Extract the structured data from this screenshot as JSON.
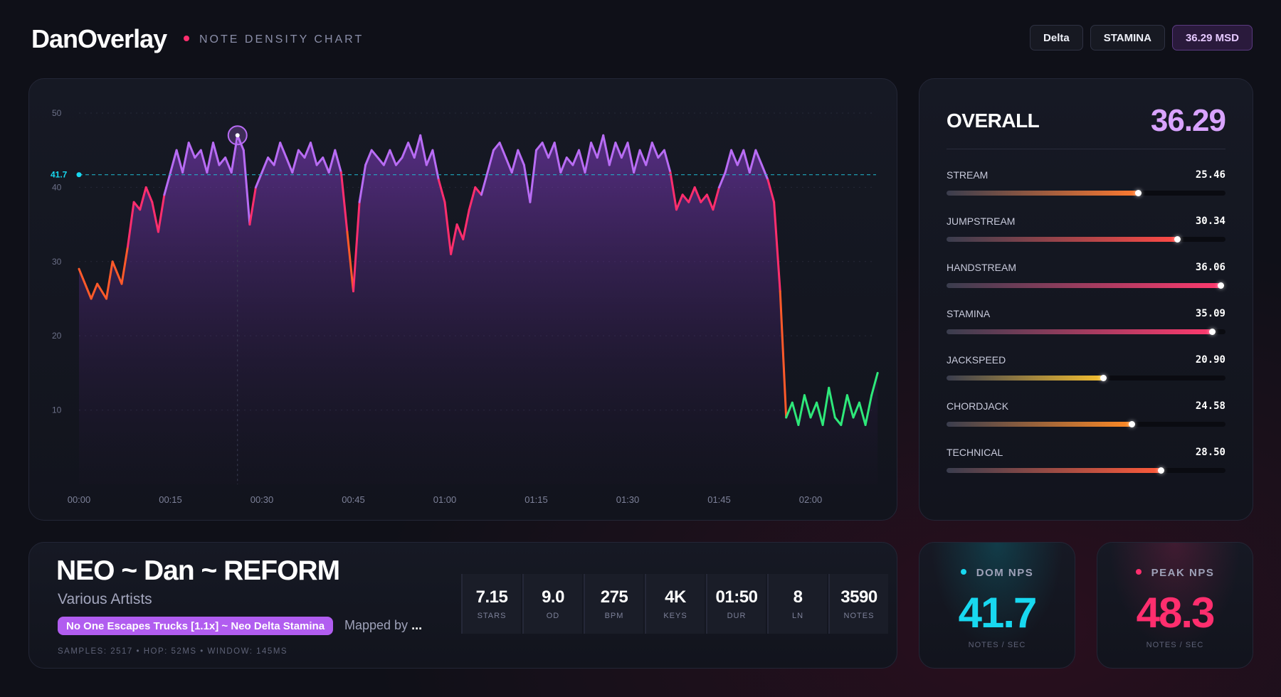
{
  "header": {
    "brand": "DanOverlay",
    "subtitle": "NOTE DENSITY CHART",
    "chips": [
      {
        "label": "Delta"
      },
      {
        "label": "STAMINA"
      },
      {
        "label": "36.29 MSD"
      }
    ]
  },
  "chart_data": {
    "type": "area",
    "title": "",
    "xlabel": "",
    "ylabel": "",
    "x_ticks": [
      "00:00",
      "00:15",
      "00:30",
      "00:45",
      "01:00",
      "01:15",
      "01:30",
      "01:45",
      "02:00"
    ],
    "y_ticks": [
      10,
      20,
      30,
      40,
      50
    ],
    "ylim": [
      0,
      50
    ],
    "xlim_seconds": [
      0,
      131
    ],
    "dominant_line": {
      "value": 41.7,
      "label": "41.7"
    },
    "marker": {
      "x_seconds": 26,
      "y": 47
    },
    "grid": true,
    "color_scale": {
      "low": "#ff5a2a",
      "mid": "#ff2e6e",
      "high": "#b86cf4",
      "floor": "#2ee87a"
    },
    "series": [
      {
        "values": [
          [
            0,
            29
          ],
          [
            2,
            25
          ],
          [
            3,
            27
          ],
          [
            4.5,
            25
          ],
          [
            5.5,
            30
          ],
          [
            7,
            27
          ],
          [
            8,
            32
          ],
          [
            9,
            38
          ],
          [
            10,
            37
          ],
          [
            11,
            40
          ],
          [
            12,
            38
          ],
          [
            13,
            34
          ],
          [
            14,
            39
          ],
          [
            15,
            42
          ],
          [
            16,
            45
          ],
          [
            17,
            42
          ],
          [
            18,
            46
          ],
          [
            19,
            44
          ],
          [
            20,
            45
          ],
          [
            21,
            42
          ],
          [
            22,
            46
          ],
          [
            23,
            43
          ],
          [
            24,
            44
          ],
          [
            25,
            42
          ],
          [
            26,
            47
          ],
          [
            27,
            45
          ],
          [
            28,
            35
          ],
          [
            29,
            40
          ],
          [
            30,
            42
          ],
          [
            31,
            44
          ],
          [
            32,
            43
          ],
          [
            33,
            46
          ],
          [
            34,
            44
          ],
          [
            35,
            42
          ],
          [
            36,
            45
          ],
          [
            37,
            44
          ],
          [
            38,
            46
          ],
          [
            39,
            43
          ],
          [
            40,
            44
          ],
          [
            41,
            42
          ],
          [
            42,
            45
          ],
          [
            43,
            42
          ],
          [
            44,
            34
          ],
          [
            45,
            26
          ],
          [
            46,
            38
          ],
          [
            47,
            43
          ],
          [
            48,
            45
          ],
          [
            49,
            44
          ],
          [
            50,
            43
          ],
          [
            51,
            45
          ],
          [
            52,
            43
          ],
          [
            53,
            44
          ],
          [
            54,
            46
          ],
          [
            55,
            44
          ],
          [
            56,
            47
          ],
          [
            57,
            43
          ],
          [
            58,
            45
          ],
          [
            59,
            41
          ],
          [
            60,
            38
          ],
          [
            61,
            31
          ],
          [
            62,
            35
          ],
          [
            63,
            33
          ],
          [
            64,
            37
          ],
          [
            65,
            40
          ],
          [
            66,
            39
          ],
          [
            67,
            42
          ],
          [
            68,
            45
          ],
          [
            69,
            46
          ],
          [
            70,
            44
          ],
          [
            71,
            42
          ],
          [
            72,
            45
          ],
          [
            73,
            43
          ],
          [
            74,
            38
          ],
          [
            75,
            45
          ],
          [
            76,
            46
          ],
          [
            77,
            44
          ],
          [
            78,
            46
          ],
          [
            79,
            42
          ],
          [
            80,
            44
          ],
          [
            81,
            43
          ],
          [
            82,
            45
          ],
          [
            83,
            42
          ],
          [
            84,
            46
          ],
          [
            85,
            44
          ],
          [
            86,
            47
          ],
          [
            87,
            43
          ],
          [
            88,
            46
          ],
          [
            89,
            44
          ],
          [
            90,
            46
          ],
          [
            91,
            42
          ],
          [
            92,
            45
          ],
          [
            93,
            43
          ],
          [
            94,
            46
          ],
          [
            95,
            44
          ],
          [
            96,
            45
          ],
          [
            97,
            42
          ],
          [
            98,
            37
          ],
          [
            99,
            39
          ],
          [
            100,
            38
          ],
          [
            101,
            40
          ],
          [
            102,
            38
          ],
          [
            103,
            39
          ],
          [
            104,
            37
          ],
          [
            105,
            40
          ],
          [
            106,
            42
          ],
          [
            107,
            45
          ],
          [
            108,
            43
          ],
          [
            109,
            45
          ],
          [
            110,
            42
          ],
          [
            111,
            45
          ],
          [
            112,
            43
          ],
          [
            113,
            41
          ],
          [
            114,
            38
          ],
          [
            115,
            26
          ],
          [
            116,
            9
          ],
          [
            117,
            11
          ],
          [
            118,
            8
          ],
          [
            119,
            12
          ],
          [
            120,
            9
          ],
          [
            121,
            11
          ],
          [
            122,
            8
          ],
          [
            123,
            13
          ],
          [
            124,
            9
          ],
          [
            125,
            8
          ],
          [
            126,
            12
          ],
          [
            127,
            9
          ],
          [
            128,
            11
          ],
          [
            129,
            8
          ],
          [
            130,
            12
          ],
          [
            131,
            15
          ]
        ]
      }
    ]
  },
  "skills": {
    "overall_label": "OVERALL",
    "overall_value": "36.29",
    "items": [
      {
        "name": "STREAM",
        "value": "25.46",
        "fraction": 0.69,
        "color": "#ff7a30"
      },
      {
        "name": "JUMPSTREAM",
        "value": "30.34",
        "fraction": 0.83,
        "color": "#ff4a45"
      },
      {
        "name": "HANDSTREAM",
        "value": "36.06",
        "fraction": 0.985,
        "color": "#ff3a6e"
      },
      {
        "name": "STAMINA",
        "value": "35.09",
        "fraction": 0.955,
        "color": "#ff3a6e"
      },
      {
        "name": "JACKSPEED",
        "value": "20.90",
        "fraction": 0.565,
        "color": "#f5c030"
      },
      {
        "name": "CHORDJACK",
        "value": "24.58",
        "fraction": 0.665,
        "color": "#ff8a25"
      },
      {
        "name": "TECHNICAL",
        "value": "28.50",
        "fraction": 0.77,
        "color": "#ff5a3a"
      }
    ]
  },
  "song": {
    "title": "NEO ~ Dan ~ REFORM",
    "artist": "Various Artists",
    "difficulty": "No One Escapes Trucks [1.1x] ~ Neo Delta Stamina",
    "mapper_prefix": "Mapped by",
    "mapper": "...",
    "meta": "SAMPLES: 2517  •  HOP: 52MS  •  WINDOW: 145MS",
    "stats": [
      {
        "value": "7.15",
        "label": "STARS"
      },
      {
        "value": "9.0",
        "label": "OD"
      },
      {
        "value": "275",
        "label": "BPM"
      },
      {
        "value": "4K",
        "label": "KEYS"
      },
      {
        "value": "01:50",
        "label": "DUR"
      },
      {
        "value": "8",
        "label": "LN"
      },
      {
        "value": "3590",
        "label": "NOTES"
      }
    ]
  },
  "dom_nps": {
    "label": "DOM NPS",
    "value": "41.7",
    "unit": "NOTES / SEC",
    "color": "#18d8f0"
  },
  "peak_nps": {
    "label": "PEAK NPS",
    "value": "48.3",
    "unit": "NOTES / SEC",
    "color": "#ff2e6e"
  }
}
